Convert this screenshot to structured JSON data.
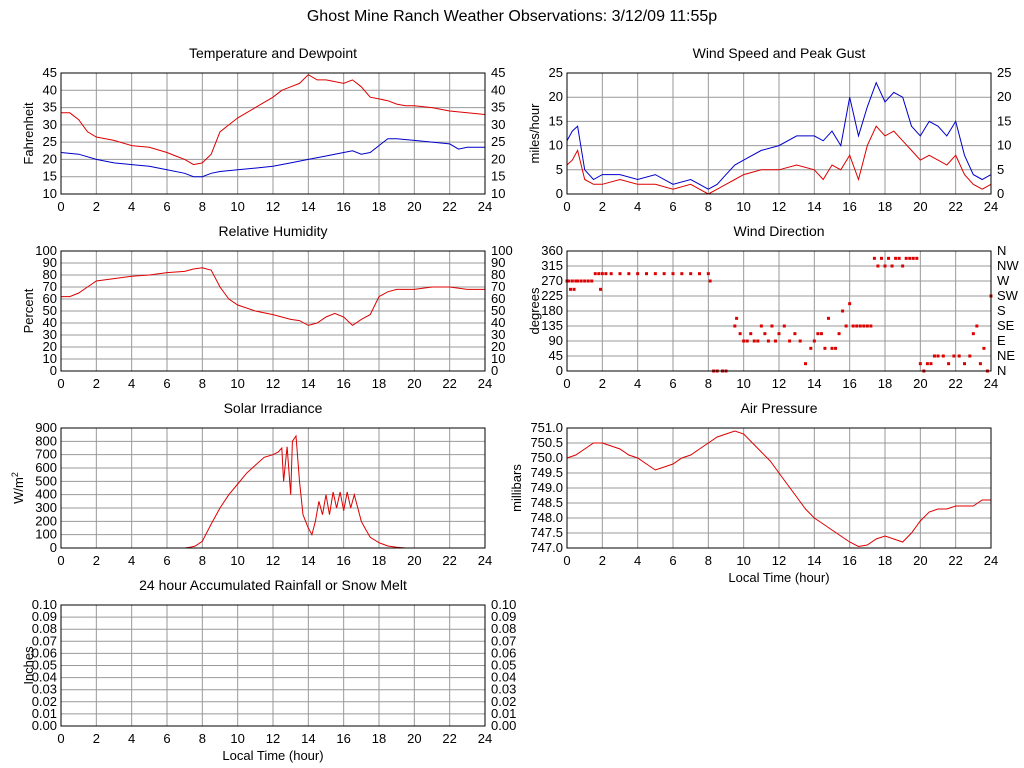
{
  "page": {
    "title": "Ghost Mine Ranch Weather Observations: 3/12/09 11:55p"
  },
  "colors": {
    "temperature": "#dd0000",
    "dewpoint": "#0000cc",
    "primary": "#dd0000",
    "grid": "#999999",
    "axis": "#000000"
  },
  "chart_data": [
    {
      "id": "temp",
      "type": "line",
      "title": "Temperature and Dewpoint",
      "xlabel": "",
      "ylabel": "Fahrenheit",
      "xlim": [
        0,
        24
      ],
      "ylim": [
        10,
        45
      ],
      "x_ticks": [
        "0",
        "2",
        "4",
        "6",
        "8",
        "10",
        "12",
        "14",
        "16",
        "18",
        "20",
        "22",
        "24"
      ],
      "y_ticks": [
        "10",
        "15",
        "20",
        "25",
        "30",
        "35",
        "40",
        "45"
      ],
      "right_ticks": [
        "10",
        "15",
        "20",
        "25",
        "30",
        "35",
        "40",
        "45"
      ],
      "grid": true,
      "series": [
        {
          "color": "#dd0000",
          "x": [
            0,
            0.5,
            1,
            1.5,
            2,
            3,
            4,
            5,
            6,
            6.5,
            7,
            7.5,
            8,
            8.5,
            9,
            10,
            11,
            12,
            12.5,
            13,
            13.5,
            14,
            14.5,
            15,
            16,
            16.5,
            17,
            17.5,
            18,
            18.5,
            19,
            19.5,
            20,
            21,
            22,
            23,
            24
          ],
          "y": [
            33.5,
            33.5,
            31.5,
            28,
            26.5,
            25.5,
            24,
            23.5,
            22,
            21,
            20,
            18.5,
            19,
            21.5,
            28,
            32,
            35,
            38,
            40,
            41,
            42,
            44.5,
            43,
            43,
            42,
            43,
            41,
            38,
            37.5,
            37,
            36,
            35.5,
            35.5,
            35,
            34,
            33.5,
            33
          ]
        },
        {
          "color": "#0000cc",
          "x": [
            0,
            1,
            2,
            3,
            4,
            5,
            6,
            7,
            7.5,
            8,
            8.5,
            9,
            10,
            11,
            12,
            13,
            14,
            15,
            16,
            16.5,
            17,
            17.5,
            18,
            18.5,
            19,
            20,
            21,
            22,
            22.5,
            23,
            24
          ],
          "y": [
            22,
            21.5,
            20,
            19,
            18.5,
            18,
            17,
            16,
            15,
            15,
            16,
            16.5,
            17,
            17.5,
            18,
            19,
            20,
            21,
            22,
            22.5,
            21.5,
            22,
            24,
            26,
            26,
            25.5,
            25,
            24.5,
            23,
            23.5,
            23.5
          ]
        }
      ]
    },
    {
      "id": "wind",
      "type": "line",
      "title": "Wind Speed and Peak Gust",
      "xlabel": "",
      "ylabel": "miles/hour",
      "xlim": [
        0,
        24
      ],
      "ylim": [
        0,
        25
      ],
      "x_ticks": [
        "0",
        "2",
        "4",
        "6",
        "8",
        "10",
        "12",
        "14",
        "16",
        "18",
        "20",
        "22",
        "24"
      ],
      "y_ticks": [
        "0",
        "5",
        "10",
        "15",
        "20",
        "25"
      ],
      "right_ticks": [
        "0",
        "5",
        "10",
        "15",
        "20",
        "25"
      ],
      "grid": true,
      "series": [
        {
          "color": "#0000cc",
          "x": [
            0,
            0.3,
            0.6,
            1,
            1.5,
            2,
            3,
            4,
            5,
            6,
            7,
            7.5,
            8,
            8.5,
            9,
            9.5,
            10,
            11,
            12,
            13,
            14,
            14.5,
            15,
            15.5,
            16,
            16.5,
            17,
            17.5,
            18,
            18.5,
            19,
            19.5,
            20,
            20.5,
            21,
            21.5,
            22,
            22.5,
            23,
            23.5,
            24
          ],
          "y": [
            11,
            13,
            14,
            5,
            3,
            4,
            4,
            3,
            4,
            2,
            3,
            2,
            1,
            2,
            4,
            6,
            7,
            9,
            10,
            12,
            12,
            11,
            13,
            10,
            20,
            12,
            18,
            23,
            19,
            21,
            20,
            14,
            12,
            15,
            14,
            12,
            15,
            8,
            4,
            3,
            4
          ]
        },
        {
          "color": "#dd0000",
          "x": [
            0,
            0.3,
            0.6,
            1,
            1.5,
            2,
            3,
            4,
            5,
            6,
            7,
            7.5,
            8,
            8.5,
            9,
            9.5,
            10,
            11,
            12,
            13,
            14,
            14.5,
            15,
            15.5,
            16,
            16.5,
            17,
            17.5,
            18,
            18.5,
            19,
            19.5,
            20,
            20.5,
            21,
            21.5,
            22,
            22.5,
            23,
            23.5,
            24
          ],
          "y": [
            6,
            7,
            9,
            3,
            2,
            2,
            3,
            2,
            2,
            1,
            2,
            1,
            0,
            1,
            2,
            3,
            4,
            5,
            5,
            6,
            5,
            3,
            6,
            5,
            8,
            3,
            10,
            14,
            12,
            13,
            11,
            9,
            7,
            8,
            7,
            6,
            8,
            4,
            2,
            1,
            2
          ]
        }
      ]
    },
    {
      "id": "rh",
      "type": "line",
      "title": "Relative Humidity",
      "xlabel": "",
      "ylabel": "Percent",
      "xlim": [
        0,
        24
      ],
      "ylim": [
        0,
        100
      ],
      "x_ticks": [
        "0",
        "2",
        "4",
        "6",
        "8",
        "10",
        "12",
        "14",
        "16",
        "18",
        "20",
        "22",
        "24"
      ],
      "y_ticks": [
        "0",
        "10",
        "20",
        "30",
        "40",
        "50",
        "60",
        "70",
        "80",
        "90",
        "100"
      ],
      "right_ticks": [
        "0",
        "10",
        "20",
        "30",
        "40",
        "50",
        "60",
        "70",
        "80",
        "90",
        "100"
      ],
      "grid": true,
      "series": [
        {
          "color": "#dd0000",
          "x": [
            0,
            0.5,
            1,
            1.5,
            2,
            3,
            4,
            5,
            6,
            7,
            7.5,
            8,
            8.5,
            9,
            9.5,
            10,
            11,
            12,
            13,
            13.5,
            14,
            14.5,
            15,
            15.5,
            16,
            16.5,
            17,
            17.5,
            18,
            18.5,
            19,
            20,
            21,
            22,
            23,
            24
          ],
          "y": [
            62,
            62,
            65,
            70,
            75,
            77,
            79,
            80,
            82,
            83,
            85,
            86,
            84,
            70,
            60,
            55,
            50,
            47,
            43,
            42,
            38,
            40,
            45,
            48,
            45,
            38,
            43,
            47,
            62,
            66,
            68,
            68,
            70,
            70,
            68,
            68
          ]
        }
      ]
    },
    {
      "id": "wdir",
      "type": "scatter",
      "title": "Wind Direction",
      "xlabel": "",
      "ylabel": "degrees",
      "xlim": [
        0,
        24
      ],
      "ylim": [
        0,
        360
      ],
      "x_ticks": [
        "0",
        "2",
        "4",
        "6",
        "8",
        "10",
        "12",
        "14",
        "16",
        "18",
        "20",
        "22",
        "24"
      ],
      "y_ticks": [
        "0",
        "45",
        "90",
        "135",
        "180",
        "225",
        "270",
        "315",
        "360"
      ],
      "right_ticks": [
        "N",
        "NE",
        "E",
        "SE",
        "S",
        "SW",
        "W",
        "NW",
        "N"
      ],
      "grid": true,
      "series": [
        {
          "color": "#dd0000",
          "x": [
            0,
            0.1,
            0.2,
            0.3,
            0.4,
            0.5,
            0.6,
            0.8,
            1,
            1.2,
            1.4,
            1.6,
            1.8,
            2,
            2.2,
            2.5,
            3,
            3.5,
            4,
            4.5,
            5,
            5.5,
            6,
            6.5,
            7,
            7.5,
            8,
            8.1,
            8.3,
            8.5,
            8.8,
            9,
            9.5,
            9.6,
            9.8,
            10,
            10.2,
            10.4,
            10.6,
            10.8,
            11,
            11.2,
            11.4,
            11.6,
            11.8,
            12,
            12.3,
            12.6,
            12.9,
            13.2,
            13.5,
            13.8,
            14,
            14.2,
            14.4,
            14.6,
            14.8,
            15,
            15.2,
            15.4,
            15.6,
            15.8,
            16,
            16.2,
            16.4,
            16.6,
            16.8,
            17,
            17.2,
            17.4,
            17.6,
            17.8,
            18,
            18.2,
            18.4,
            18.6,
            18.8,
            19,
            19.2,
            19.4,
            19.6,
            19.8,
            20,
            20.2,
            20.4,
            20.6,
            20.8,
            21,
            21.3,
            21.6,
            21.9,
            22.2,
            22.5,
            22.8,
            23,
            23.2,
            23.4,
            23.6,
            23.8,
            24,
            1.9
          ],
          "y": [
            270,
            270,
            245,
            270,
            245,
            270,
            270,
            270,
            270,
            270,
            270,
            292,
            292,
            292,
            292,
            292,
            292,
            292,
            292,
            292,
            292,
            292,
            292,
            292,
            292,
            292,
            292,
            270,
            0,
            0,
            0,
            0,
            135,
            158,
            112,
            90,
            90,
            112,
            90,
            90,
            135,
            112,
            90,
            135,
            90,
            112,
            135,
            90,
            112,
            90,
            22,
            68,
            90,
            112,
            112,
            68,
            158,
            68,
            68,
            112,
            180,
            135,
            202,
            135,
            135,
            135,
            135,
            135,
            135,
            338,
            315,
            338,
            315,
            338,
            315,
            338,
            338,
            315,
            338,
            338,
            338,
            338,
            22,
            0,
            22,
            22,
            45,
            45,
            45,
            22,
            45,
            45,
            22,
            45,
            112,
            135,
            22,
            68,
            0,
            225,
            245
          ]
        }
      ]
    },
    {
      "id": "solar",
      "type": "line",
      "title": "Solar Irradiance",
      "xlabel": "",
      "ylabel": "W/m2",
      "xlim": [
        0,
        24
      ],
      "ylim": [
        0,
        900
      ],
      "x_ticks": [
        "0",
        "2",
        "4",
        "6",
        "8",
        "10",
        "12",
        "14",
        "16",
        "18",
        "20",
        "22",
        "24"
      ],
      "y_ticks": [
        "0",
        "100",
        "200",
        "300",
        "400",
        "500",
        "600",
        "700",
        "800",
        "900"
      ],
      "right_ticks": [],
      "grid": true,
      "series": [
        {
          "color": "#dd0000",
          "x": [
            0,
            2,
            4,
            6,
            7,
            7.3,
            7.6,
            8,
            8.5,
            9,
            9.5,
            10,
            10.5,
            11,
            11.5,
            12,
            12.3,
            12.5,
            12.6,
            12.8,
            13,
            13.1,
            13.3,
            13.5,
            13.7,
            14,
            14.2,
            14.4,
            14.6,
            14.8,
            15,
            15.2,
            15.4,
            15.6,
            15.8,
            16,
            16.2,
            16.4,
            16.6,
            16.8,
            17,
            17.2,
            17.5,
            18,
            18.5,
            19,
            19.5,
            20,
            22,
            24
          ],
          "y": [
            0,
            0,
            0,
            0,
            0,
            5,
            15,
            50,
            180,
            300,
            400,
            480,
            560,
            620,
            680,
            700,
            720,
            750,
            500,
            760,
            400,
            800,
            840,
            500,
            250,
            150,
            100,
            200,
            350,
            250,
            400,
            250,
            420,
            300,
            420,
            280,
            420,
            300,
            400,
            300,
            200,
            150,
            80,
            40,
            15,
            5,
            0,
            0,
            0,
            0
          ]
        }
      ]
    },
    {
      "id": "pressure",
      "type": "line",
      "title": "Air Pressure",
      "xlabel": "Local Time (hour)",
      "ylabel": "millibars",
      "xlim": [
        0,
        24
      ],
      "ylim": [
        747.0,
        751.0
      ],
      "x_ticks": [
        "0",
        "2",
        "4",
        "6",
        "8",
        "10",
        "12",
        "14",
        "16",
        "18",
        "20",
        "22",
        "24"
      ],
      "y_ticks": [
        "747.0",
        "747.5",
        "748.0",
        "748.5",
        "749.0",
        "749.5",
        "750.0",
        "750.5",
        "751.0"
      ],
      "right_ticks": [],
      "grid": true,
      "series": [
        {
          "color": "#dd0000",
          "x": [
            0,
            0.5,
            1,
            1.5,
            2,
            2.5,
            3,
            3.5,
            4,
            4.5,
            5,
            5.5,
            6,
            6.5,
            7,
            7.5,
            8,
            8.5,
            9,
            9.5,
            10,
            10.5,
            11,
            11.5,
            12,
            12.5,
            13,
            13.5,
            14,
            14.5,
            15,
            15.5,
            16,
            16.5,
            17,
            17.5,
            18,
            18.5,
            19,
            19.5,
            20,
            20.5,
            21,
            21.5,
            22,
            22.5,
            23,
            23.5,
            24
          ],
          "y": [
            750.0,
            750.1,
            750.3,
            750.5,
            750.5,
            750.4,
            750.3,
            750.1,
            750.0,
            749.8,
            749.6,
            749.7,
            749.8,
            750.0,
            750.1,
            750.3,
            750.5,
            750.7,
            750.8,
            750.9,
            750.8,
            750.5,
            750.2,
            749.9,
            749.5,
            749.1,
            748.7,
            748.3,
            748.0,
            747.8,
            747.6,
            747.4,
            747.2,
            747.05,
            747.1,
            747.3,
            747.4,
            747.3,
            747.2,
            747.5,
            747.9,
            748.2,
            748.3,
            748.3,
            748.4,
            748.4,
            748.4,
            748.6,
            748.6
          ]
        }
      ]
    },
    {
      "id": "rain",
      "type": "line",
      "title": "24 hour Accumulated Rainfall or Snow Melt",
      "xlabel": "Local Time (hour)",
      "ylabel": "Inches",
      "xlim": [
        0,
        24
      ],
      "ylim": [
        0,
        0.1
      ],
      "x_ticks": [
        "0",
        "2",
        "4",
        "6",
        "8",
        "10",
        "12",
        "14",
        "16",
        "18",
        "20",
        "22",
        "24"
      ],
      "y_ticks": [
        "0.00",
        "0.01",
        "0.02",
        "0.03",
        "0.04",
        "0.05",
        "0.06",
        "0.07",
        "0.08",
        "0.09",
        "0.10"
      ],
      "right_ticks": [
        "0.00",
        "0.01",
        "0.02",
        "0.03",
        "0.04",
        "0.05",
        "0.06",
        "0.07",
        "0.08",
        "0.09",
        "0.10"
      ],
      "grid": true,
      "series": [
        {
          "color": "#dd0000",
          "x": [
            0,
            24
          ],
          "y": [
            0,
            0
          ]
        }
      ]
    }
  ]
}
